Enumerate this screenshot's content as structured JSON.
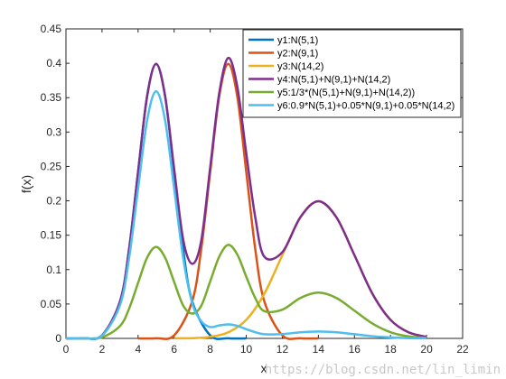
{
  "chart_data": {
    "type": "line",
    "xlabel": "x",
    "ylabel": "f(x)",
    "xlim": [
      0,
      22
    ],
    "ylim": [
      0,
      0.45
    ],
    "xticks": [
      "0",
      "2",
      "4",
      "6",
      "8",
      "10",
      "12",
      "14",
      "16",
      "18",
      "20",
      "22"
    ],
    "yticks": [
      "0",
      "0.05",
      "0.1",
      "0.15",
      "0.2",
      "0.25",
      "0.3",
      "0.35",
      "0.4",
      "0.45"
    ],
    "legend_position": "top-right",
    "series": [
      {
        "name": "y1:N(5,1)",
        "color": "#0072BD",
        "x": [
          0,
          1,
          2,
          3,
          3.5,
          4,
          4.5,
          5,
          5.5,
          6,
          6.5,
          7,
          8,
          9,
          10
        ],
        "y": [
          0,
          0.0001,
          0.0044,
          0.054,
          0.1295,
          0.242,
          0.352,
          0.399,
          0.352,
          0.242,
          0.1295,
          0.054,
          0.0044,
          0.0001,
          0
        ]
      },
      {
        "name": "y2:N(9,1)",
        "color": "#D95319",
        "x": [
          4,
          5,
          6,
          7,
          7.5,
          8,
          8.5,
          9,
          9.5,
          10,
          10.5,
          11,
          12,
          13,
          14
        ],
        "y": [
          0,
          0.0001,
          0.0044,
          0.054,
          0.1295,
          0.242,
          0.352,
          0.399,
          0.352,
          0.242,
          0.1295,
          0.054,
          0.0044,
          0.0001,
          0
        ]
      },
      {
        "name": "y3:N(14,2)",
        "color": "#EDB120",
        "x": [
          6,
          7,
          8,
          9,
          10,
          11,
          12,
          13,
          14,
          15,
          16,
          17,
          18,
          19,
          20
        ],
        "y": [
          0.0001,
          0.0004,
          0.0022,
          0.0088,
          0.027,
          0.0648,
          0.121,
          0.176,
          0.1995,
          0.176,
          0.121,
          0.0648,
          0.027,
          0.0088,
          0.0022
        ]
      },
      {
        "name": "y4:N(5,1)+N(9,1)+N(14,2)",
        "color": "#7E2F8E",
        "x": [
          0,
          1,
          2,
          3,
          3.5,
          4,
          4.5,
          5,
          5.5,
          6,
          6.5,
          7,
          7.5,
          8,
          8.5,
          9,
          9.5,
          10,
          10.5,
          11,
          12,
          13,
          14,
          15,
          16,
          17,
          18,
          19,
          20
        ],
        "y": [
          0,
          0.0001,
          0.0044,
          0.054,
          0.1295,
          0.242,
          0.352,
          0.399,
          0.352,
          0.2464,
          0.1438,
          0.1084,
          0.1415,
          0.2486,
          0.3564,
          0.4078,
          0.3664,
          0.269,
          0.1758,
          0.1188,
          0.1254,
          0.1761,
          0.1995,
          0.176,
          0.121,
          0.0648,
          0.027,
          0.0088,
          0.0022
        ]
      },
      {
        "name": "y5:1/3*(N(5,1)+N(9,1)+N(14,2))",
        "color": "#77AC30",
        "x": [
          0,
          1,
          2,
          3,
          3.5,
          4,
          4.5,
          5,
          5.5,
          6,
          6.5,
          7,
          7.5,
          8,
          8.5,
          9,
          9.5,
          10,
          10.5,
          11,
          12,
          13,
          14,
          15,
          16,
          17,
          18,
          19,
          20
        ],
        "y": [
          0,
          0,
          0.0015,
          0.018,
          0.0432,
          0.0807,
          0.1173,
          0.133,
          0.1173,
          0.0821,
          0.0479,
          0.0361,
          0.0472,
          0.0829,
          0.1188,
          0.1359,
          0.1221,
          0.0897,
          0.0586,
          0.0396,
          0.0418,
          0.0587,
          0.0665,
          0.0587,
          0.0403,
          0.0216,
          0.009,
          0.0029,
          0.0007
        ]
      },
      {
        "name": "y6:0.9*N(5,1)+0.05*N(9,1)+0.05*N(14,2)",
        "color": "#4DBEEE",
        "x": [
          0,
          1,
          2,
          3,
          3.5,
          4,
          4.5,
          5,
          5.5,
          6,
          6.5,
          7,
          7.5,
          8,
          8.5,
          9,
          9.5,
          10,
          10.5,
          11,
          12,
          13,
          14,
          15,
          16,
          17,
          18,
          19,
          20
        ],
        "y": [
          0,
          0.0001,
          0.004,
          0.0486,
          0.1166,
          0.2178,
          0.3168,
          0.3591,
          0.3168,
          0.2181,
          0.1173,
          0.0516,
          0.0251,
          0.0165,
          0.0189,
          0.0204,
          0.0182,
          0.0134,
          0.009,
          0.006,
          0.0063,
          0.0088,
          0.01,
          0.0088,
          0.0061,
          0.0032,
          0.0014,
          0.0004,
          0.0001
        ]
      }
    ]
  },
  "watermark": "https://blog.csdn.net/lin_limin"
}
